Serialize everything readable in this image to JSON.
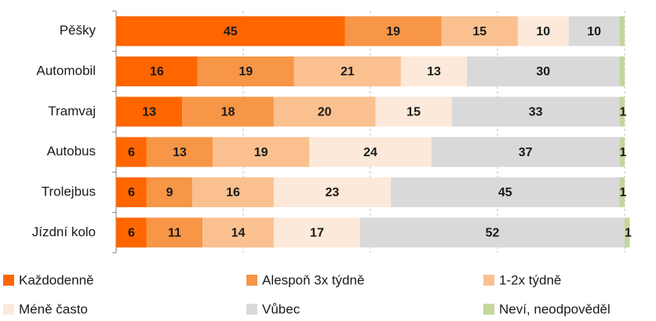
{
  "chart_data": {
    "type": "stacked-bar-horizontal",
    "categories": [
      "Pěšky",
      "Automobil",
      "Tramvaj",
      "Autobus",
      "Trolejbus",
      "Jízdní kolo"
    ],
    "series": [
      {
        "name": "Každodenně",
        "color": "#ff6600",
        "values": [
          45,
          16,
          13,
          6,
          6,
          6
        ]
      },
      {
        "name": "Alespoň 3x týdně",
        "color": "#f79646",
        "values": [
          19,
          19,
          18,
          13,
          9,
          11
        ]
      },
      {
        "name": "1-2x týdně",
        "color": "#fac090",
        "values": [
          15,
          21,
          20,
          19,
          16,
          14
        ]
      },
      {
        "name": "Méně často",
        "color": "#fde9d9",
        "values": [
          10,
          13,
          15,
          24,
          23,
          17
        ]
      },
      {
        "name": "Vůbec",
        "color": "#d9d9d9",
        "values": [
          10,
          30,
          33,
          37,
          45,
          52
        ]
      },
      {
        "name": "Neví, neodpověděl",
        "color": "#c3d69b",
        "values": [
          1,
          1,
          1,
          1,
          1,
          1
        ],
        "value_labels": [
          null,
          null,
          "1",
          "1",
          "1",
          "1"
        ]
      }
    ],
    "xlim": [
      0,
      100
    ],
    "xticks": [
      0,
      25,
      50,
      75,
      100
    ],
    "grid": true,
    "legend": "bottom"
  }
}
